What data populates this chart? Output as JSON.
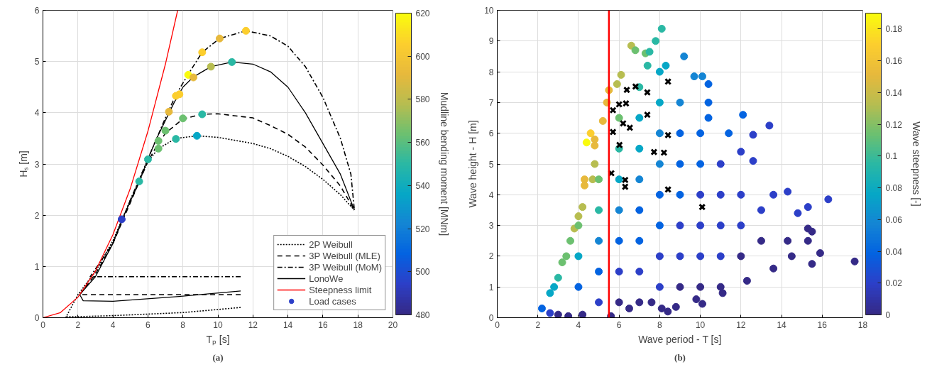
{
  "chart_data": [
    {
      "type": "line",
      "xlabel": "Tₚ [s]",
      "ylabel": "Hₛ [m]",
      "clabel": "Mudline bending moment [MNm]",
      "annotations": [
        "(a)"
      ],
      "xlim": [
        0,
        20
      ],
      "ylim": [
        0,
        6
      ],
      "xticks": [
        0,
        2,
        4,
        6,
        8,
        10,
        12,
        14,
        16,
        18,
        20
      ],
      "yticks": [
        0,
        1,
        2,
        3,
        4,
        5,
        6
      ],
      "clim": [
        480,
        620
      ],
      "cticks": [
        480,
        500,
        520,
        540,
        560,
        580,
        600,
        620
      ],
      "grid": true,
      "legend": "bottom right",
      "series": [
        {
          "name": "2P Weibull",
          "color": "#000000",
          "line_style": "dotted",
          "x": [
            11.3,
            10,
            8,
            6,
            4,
            2,
            1.3,
            1.3,
            2,
            3,
            4,
            5,
            6,
            6.6,
            7.6,
            8.8,
            10,
            12,
            13,
            14,
            15,
            16,
            17,
            17.8
          ],
          "values": [
            0.2,
            0.16,
            0.1,
            0.07,
            0.04,
            0.02,
            0.02,
            0,
            0.45,
            0.9,
            1.5,
            2.3,
            3.05,
            3.3,
            3.5,
            3.55,
            3.52,
            3.4,
            3.3,
            3.15,
            2.95,
            2.7,
            2.4,
            2.1
          ]
        },
        {
          "name": "3P Weibull (MLE)",
          "color": "#000000",
          "line_style": "dashed",
          "x": [
            11.3,
            2.1,
            3,
            4,
            5,
            6,
            6.5,
            7,
            8,
            9.1,
            10,
            12,
            13,
            14,
            15,
            16,
            17,
            17.8
          ],
          "values": [
            0.45,
            0.45,
            0.85,
            1.45,
            2.25,
            3.05,
            3.35,
            3.6,
            3.88,
            3.97,
            3.98,
            3.9,
            3.75,
            3.58,
            3.33,
            2.98,
            2.57,
            2.1
          ]
        },
        {
          "name": "3P Weibull (MoM)",
          "color": "#000000",
          "line_style": "dashdot",
          "x": [
            11.3,
            2.7,
            4,
            5,
            6,
            7,
            7.6,
            8.3,
            9.1,
            10.1,
            11.6,
            13,
            14,
            15,
            16,
            17,
            17.6,
            17.8
          ],
          "values": [
            0.8,
            0.8,
            1.45,
            2.3,
            3.1,
            3.9,
            4.35,
            4.75,
            5.18,
            5.45,
            5.6,
            5.5,
            5.3,
            4.9,
            4.3,
            3.5,
            2.8,
            2.1
          ]
        },
        {
          "name": "LonoWe",
          "color": "#000000",
          "line_style": "solid",
          "x": [
            11.3,
            8,
            4,
            2.3,
            2.1,
            3,
            4,
            4.5,
            5.5,
            6,
            6.5,
            7,
            7.5,
            8,
            8.6,
            9.6,
            10.8,
            12,
            13,
            14,
            15,
            16,
            17,
            17.8
          ],
          "values": [
            0.52,
            0.42,
            0.32,
            0.33,
            0.45,
            0.8,
            1.45,
            1.9,
            2.65,
            3.1,
            3.5,
            3.85,
            4.2,
            4.5,
            4.7,
            4.9,
            4.99,
            4.95,
            4.8,
            4.5,
            4.0,
            3.4,
            2.8,
            2.1
          ]
        },
        {
          "name": "Steepness limit",
          "color": "#ff0000",
          "line_style": "solid",
          "x": [
            0,
            1,
            2,
            3,
            4,
            5,
            6,
            7,
            7.7
          ],
          "values": [
            0,
            0.1,
            0.4,
            0.91,
            1.62,
            2.53,
            3.64,
            4.95,
            6.0
          ]
        },
        {
          "name": "Load cases",
          "type": "scatter",
          "marker": "circle",
          "x": [
            4.5,
            5.5,
            6.0,
            6.6,
            6.6,
            7.0,
            7.2,
            7.6,
            7.8,
            8.3,
            8.6,
            9.1,
            10.1,
            11.6,
            9.6,
            10.8,
            8.0,
            9.1,
            7.6,
            8.8
          ],
          "values": [
            1.92,
            2.66,
            3.09,
            3.3,
            3.45,
            3.65,
            4.02,
            4.33,
            4.36,
            4.74,
            4.69,
            5.18,
            5.45,
            5.6,
            4.9,
            4.99,
            3.89,
            3.97,
            3.49,
            3.55
          ],
          "cvalues": [
            494,
            550,
            550,
            564,
            564,
            564,
            592,
            606,
            606,
            620,
            592,
            606,
            592,
            606,
            578,
            550,
            564,
            550,
            550,
            536
          ],
          "colors": [
            "#2c3fc8",
            "#2ab8a4",
            "#2ab8a4",
            "#6cc070",
            "#6cc070",
            "#6cc070",
            "#e7b93c",
            "#fcce2e",
            "#fcce2e",
            "#f9fb0e",
            "#e7b93c",
            "#fcce2e",
            "#e7b93c",
            "#fcce2e",
            "#b7bd50",
            "#2ab8a4",
            "#6cc070",
            "#2ab8a4",
            "#2ab8a4",
            "#06a7c6"
          ]
        }
      ]
    },
    {
      "type": "scatter",
      "xlabel": "Wave period - T [s]",
      "ylabel": "Wave height - H [m]",
      "clabel": "Wave steepness [-]",
      "annotations": [
        "(b)"
      ],
      "xlim": [
        0,
        18
      ],
      "ylim": [
        0,
        10
      ],
      "xticks": [
        0,
        2,
        4,
        6,
        8,
        10,
        12,
        14,
        16,
        18
      ],
      "yticks": [
        0,
        1,
        2,
        3,
        4,
        5,
        6,
        7,
        8,
        9,
        10
      ],
      "clim": [
        0,
        0.19
      ],
      "cticks": [
        0,
        0.02,
        0.04,
        0.06,
        0.08,
        0.1,
        0.12,
        0.14,
        0.16,
        0.18
      ],
      "grid": true,
      "ref_lines": [
        {
          "axis": "x",
          "value": 5.5,
          "color": "#ff0000"
        }
      ],
      "series": [
        {
          "marker": "circle",
          "x": [
            2.2,
            2.6,
            2.8,
            3.0,
            3.2,
            3.4,
            3.6,
            3.8,
            4.0,
            4.2,
            4.3,
            4.3,
            4.4,
            4.6,
            4.8,
            4.8,
            4.8,
            4.7,
            5.2,
            5.4,
            5.5,
            5.9,
            6.1,
            6.6,
            6.8,
            7.3,
            7.5,
            7.8,
            8.1,
            7.4,
            8.0,
            8.3,
            9.2,
            9.7,
            10.1,
            10.4,
            10.4,
            10.4,
            12.1,
            13.4,
            12.6,
            11.4,
            12.0,
            12.6,
            13.6,
            14.3,
            15.3,
            16.3,
            14.8,
            15.3,
            15.5,
            14.3,
            15.3,
            15.9,
            14.5,
            15.5,
            17.6,
            13.6,
            12.3,
            11.1,
            10.1,
            9.8,
            8.8,
            8.4,
            8.1,
            7.6,
            6.5,
            5.6,
            4.2,
            3.5,
            3.0,
            2.6,
            4,
            4,
            4,
            5,
            5,
            5,
            5,
            5,
            6,
            6,
            6,
            6,
            6,
            6,
            6,
            7,
            7,
            7,
            7,
            7,
            7,
            7,
            7,
            8,
            8,
            8,
            8,
            8,
            8,
            8,
            9,
            9,
            9,
            9,
            9,
            9,
            9,
            10,
            10,
            10,
            10,
            10,
            10,
            11,
            11,
            11,
            11,
            11,
            12,
            12,
            12,
            13,
            13
          ],
          "values": [
            0.3,
            0.8,
            1.0,
            1.3,
            1.8,
            2.0,
            2.5,
            2.9,
            3.3,
            3.6,
            4.3,
            4.5,
            5.7,
            6.0,
            5.8,
            5.6,
            5.0,
            4.5,
            6.4,
            7.0,
            7.4,
            7.6,
            7.9,
            8.85,
            8.7,
            8.6,
            8.65,
            9.0,
            9.4,
            8.2,
            8.0,
            8.2,
            8.5,
            7.85,
            7.85,
            7.6,
            7.0,
            6.5,
            6.6,
            6.25,
            5.95,
            6.0,
            5.4,
            5.1,
            4.0,
            4.1,
            3.6,
            3.85,
            3.4,
            2.9,
            2.8,
            2.5,
            2.5,
            2.1,
            2.0,
            1.75,
            1.83,
            1.6,
            1.2,
            0.8,
            0.45,
            0.6,
            0.35,
            0.2,
            0.3,
            0.5,
            0.3,
            0.05,
            0.1,
            0.05,
            0.1,
            0.15,
            1,
            2,
            3,
            0.5,
            1.5,
            2.5,
            3.5,
            4.5,
            0.5,
            1.5,
            2.5,
            3.5,
            4.5,
            5.5,
            6.5,
            0.5,
            1.5,
            2.5,
            3.5,
            4.5,
            5.5,
            6.5,
            7.5,
            1,
            2,
            3,
            4,
            5,
            6,
            7,
            1,
            2,
            3,
            4,
            5,
            6,
            7,
            1,
            2,
            3,
            4,
            5,
            6,
            1,
            2,
            3,
            4,
            5,
            2,
            3,
            4,
            2.5,
            3.5
          ],
          "cvalues": [
            0.038,
            0.076,
            0.076,
            0.095,
            0.114,
            0.114,
            0.114,
            0.133,
            0.133,
            0.133,
            0.152,
            0.152,
            0.19,
            0.171,
            0.152,
            0.152,
            0.133,
            0.133,
            0.152,
            0.152,
            0.152,
            0.133,
            0.133,
            0.133,
            0.114,
            0.114,
            0.095,
            0.095,
            0.095,
            0.095,
            0.076,
            0.076,
            0.057,
            0.057,
            0.057,
            0.038,
            0.038,
            0.038,
            0.038,
            0.019,
            0.019,
            0.038,
            0.019,
            0.019,
            0.019,
            0.019,
            0.019,
            0.019,
            0.019,
            0,
            0,
            0,
            0,
            0,
            0,
            0,
            0,
            0,
            0,
            0,
            0,
            0,
            0,
            0,
            0,
            0,
            0,
            0,
            0,
            0,
            0,
            0.019,
            0.038,
            0.076,
            0.114,
            0.019,
            0.038,
            0.057,
            0.095,
            0.114,
            0,
            0.019,
            0.038,
            0.057,
            0.076,
            0.095,
            0.114,
            0,
            0.019,
            0.038,
            0.038,
            0.057,
            0.076,
            0.076,
            0.095,
            0.019,
            0.019,
            0.038,
            0.038,
            0.057,
            0.057,
            0.076,
            0,
            0.019,
            0.019,
            0.038,
            0.038,
            0.038,
            0.057,
            0,
            0.019,
            0.019,
            0.019,
            0.038,
            0.038,
            0,
            0.019,
            0.019,
            0.019,
            0.019,
            0,
            0.019,
            0.019,
            0,
            0.019
          ],
          "colors": [
            "#0363e1",
            "#06a7c6",
            "#06a7c6",
            "#2ab8a4",
            "#6cc070",
            "#6cc070",
            "#6cc070",
            "#b7bd50",
            "#b7bd50",
            "#b7bd50",
            "#e7b93c",
            "#e7b93c",
            "#f9fb0e",
            "#fcce2e",
            "#e7b93c",
            "#e7b93c",
            "#b7bd50",
            "#b7bd50",
            "#e7b93c",
            "#e7b93c",
            "#e7b93c",
            "#b7bd50",
            "#b7bd50",
            "#b7bd50",
            "#6cc070",
            "#6cc070",
            "#2ab8a4",
            "#2ab8a4",
            "#2ab8a4",
            "#2ab8a4",
            "#06a7c6",
            "#06a7c6",
            "#1485d4",
            "#1485d4",
            "#1485d4",
            "#0363e1",
            "#0363e1",
            "#0363e1",
            "#0363e1",
            "#2c3fc8",
            "#2c3fc8",
            "#0363e1",
            "#2c3fc8",
            "#2c3fc8",
            "#2c3fc8",
            "#2c3fc8",
            "#2c3fc8",
            "#2c3fc8",
            "#2c3fc8",
            "#352a87",
            "#352a87",
            "#352a87",
            "#352a87",
            "#352a87",
            "#352a87",
            "#352a87",
            "#352a87",
            "#352a87",
            "#352a87",
            "#352a87",
            "#352a87",
            "#352a87",
            "#352a87",
            "#352a87",
            "#352a87",
            "#352a87",
            "#352a87",
            "#352a87",
            "#352a87",
            "#352a87",
            "#352a87",
            "#2c3fc8",
            "#0363e1",
            "#06a7c6",
            "#6cc070",
            "#2c3fc8",
            "#0363e1",
            "#1485d4",
            "#2ab8a4",
            "#6cc070",
            "#352a87",
            "#2c3fc8",
            "#0363e1",
            "#1485d4",
            "#06a7c6",
            "#2ab8a4",
            "#6cc070",
            "#352a87",
            "#2c3fc8",
            "#0363e1",
            "#0363e1",
            "#1485d4",
            "#06a7c6",
            "#06a7c6",
            "#2ab8a4",
            "#2c3fc8",
            "#2c3fc8",
            "#0363e1",
            "#0363e1",
            "#1485d4",
            "#1485d4",
            "#06a7c6",
            "#352a87",
            "#2c3fc8",
            "#2c3fc8",
            "#0363e1",
            "#0363e1",
            "#0363e1",
            "#1485d4",
            "#352a87",
            "#2c3fc8",
            "#2c3fc8",
            "#2c3fc8",
            "#0363e1",
            "#0363e1",
            "#352a87",
            "#2c3fc8",
            "#2c3fc8",
            "#2c3fc8",
            "#2c3fc8",
            "#352a87",
            "#2c3fc8",
            "#2c3fc8",
            "#352a87",
            "#2c3fc8"
          ]
        },
        {
          "color": "#000000",
          "marker": "cross",
          "x": [
            5.62,
            5.7,
            5.7,
            6.02,
            6.0,
            6.34,
            6.2,
            6.38,
            6.53,
            6.81,
            6.3,
            6.3,
            7.39,
            7.39,
            7.72,
            8.21,
            8.41,
            8.41,
            8.41,
            10.09
          ],
          "values": [
            4.7,
            6.04,
            6.75,
            5.62,
            6.94,
            6.97,
            6.32,
            7.41,
            6.18,
            7.52,
            4.48,
            4.26,
            7.33,
            6.6,
            5.39,
            5.37,
            5.94,
            7.68,
            4.17,
            3.6
          ]
        }
      ]
    }
  ]
}
